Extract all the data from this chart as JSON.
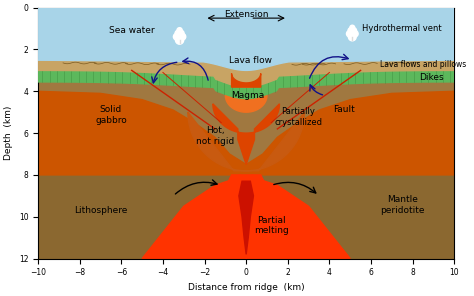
{
  "xlim": [
    -10,
    10
  ],
  "ylim": [
    12,
    0
  ],
  "xlabel": "Distance from ridge  (km)",
  "ylabel": "Depth  (km)",
  "xticks": [
    -10,
    -8,
    -6,
    -4,
    -2,
    0,
    2,
    4,
    6,
    8,
    10
  ],
  "yticks": [
    0,
    2,
    4,
    6,
    8,
    10,
    12
  ],
  "seawater_color": "#A8D4E8",
  "sediment_color": "#C8A464",
  "sediment2_color": "#D4A850",
  "dike_color": "#5CB85C",
  "dike_stripe_color": "#3A8A3A",
  "gabbro_color": "#C8954A",
  "hot_rigid_color": "#CC5500",
  "magma_color": "#DD4400",
  "magma_bright_color": "#E8600A",
  "partial_melt_color": "#FF3300",
  "plume_color": "#FF5500",
  "mantle_color": "#A07840",
  "litho_color": "#8B6830",
  "fault_color": "#CC2200",
  "arrow_color": "#111188",
  "annotation_fontsize": 6.5
}
